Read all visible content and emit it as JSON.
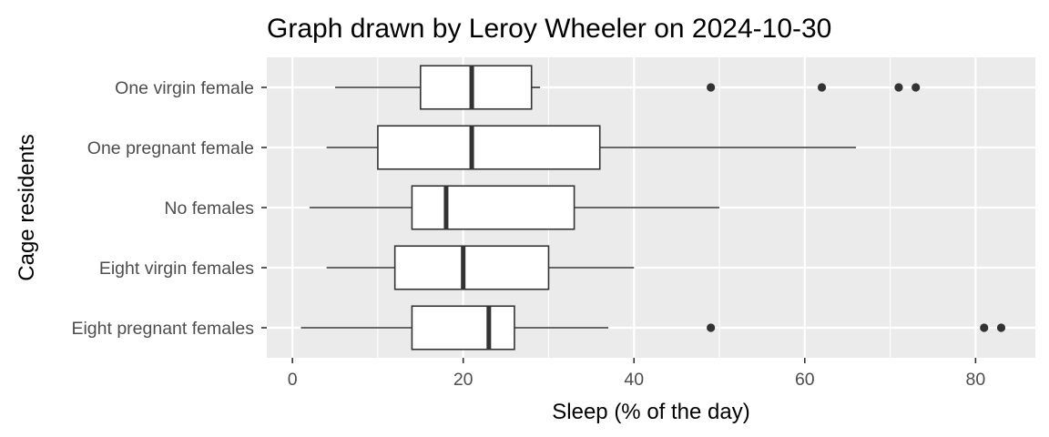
{
  "chart_data": {
    "type": "boxplot",
    "orientation": "horizontal",
    "title": "Graph drawn by Leroy Wheeler on 2024-10-30",
    "xlabel": "Sleep (% of the day)",
    "ylabel": "Cage residents",
    "xlim": [
      -3,
      87
    ],
    "x_ticks": [
      0,
      20,
      40,
      60,
      80
    ],
    "x_tick_labels": [
      "0",
      "20",
      "40",
      "60",
      "80"
    ],
    "grid": true,
    "categories": [
      "One virgin female",
      "One pregnant female",
      "No females",
      "Eight virgin females",
      "Eight pregnant females"
    ],
    "boxes": [
      {
        "category": "One virgin female",
        "whisker_low": 5,
        "q1": 15,
        "median": 21,
        "q3": 28,
        "whisker_high": 29,
        "outliers": [
          49,
          62,
          71,
          73
        ]
      },
      {
        "category": "One pregnant female",
        "whisker_low": 4,
        "q1": 10,
        "median": 21,
        "q3": 36,
        "whisker_high": 66,
        "outliers": []
      },
      {
        "category": "No females",
        "whisker_low": 2,
        "q1": 14,
        "median": 18,
        "q3": 33,
        "whisker_high": 50,
        "outliers": []
      },
      {
        "category": "Eight virgin females",
        "whisker_low": 4,
        "q1": 12,
        "median": 20,
        "q3": 30,
        "whisker_high": 40,
        "outliers": []
      },
      {
        "category": "Eight pregnant females",
        "whisker_low": 1,
        "q1": 14,
        "median": 23,
        "q3": 26,
        "whisker_high": 37,
        "outliers": [
          49,
          81,
          83
        ]
      }
    ],
    "colors": {
      "panel_background": "#ebebeb",
      "grid_major": "#ffffff",
      "box_fill": "#ffffff",
      "box_stroke": "#333333",
      "outlier": "#333333",
      "tick_label": "#4d4d4d"
    }
  }
}
